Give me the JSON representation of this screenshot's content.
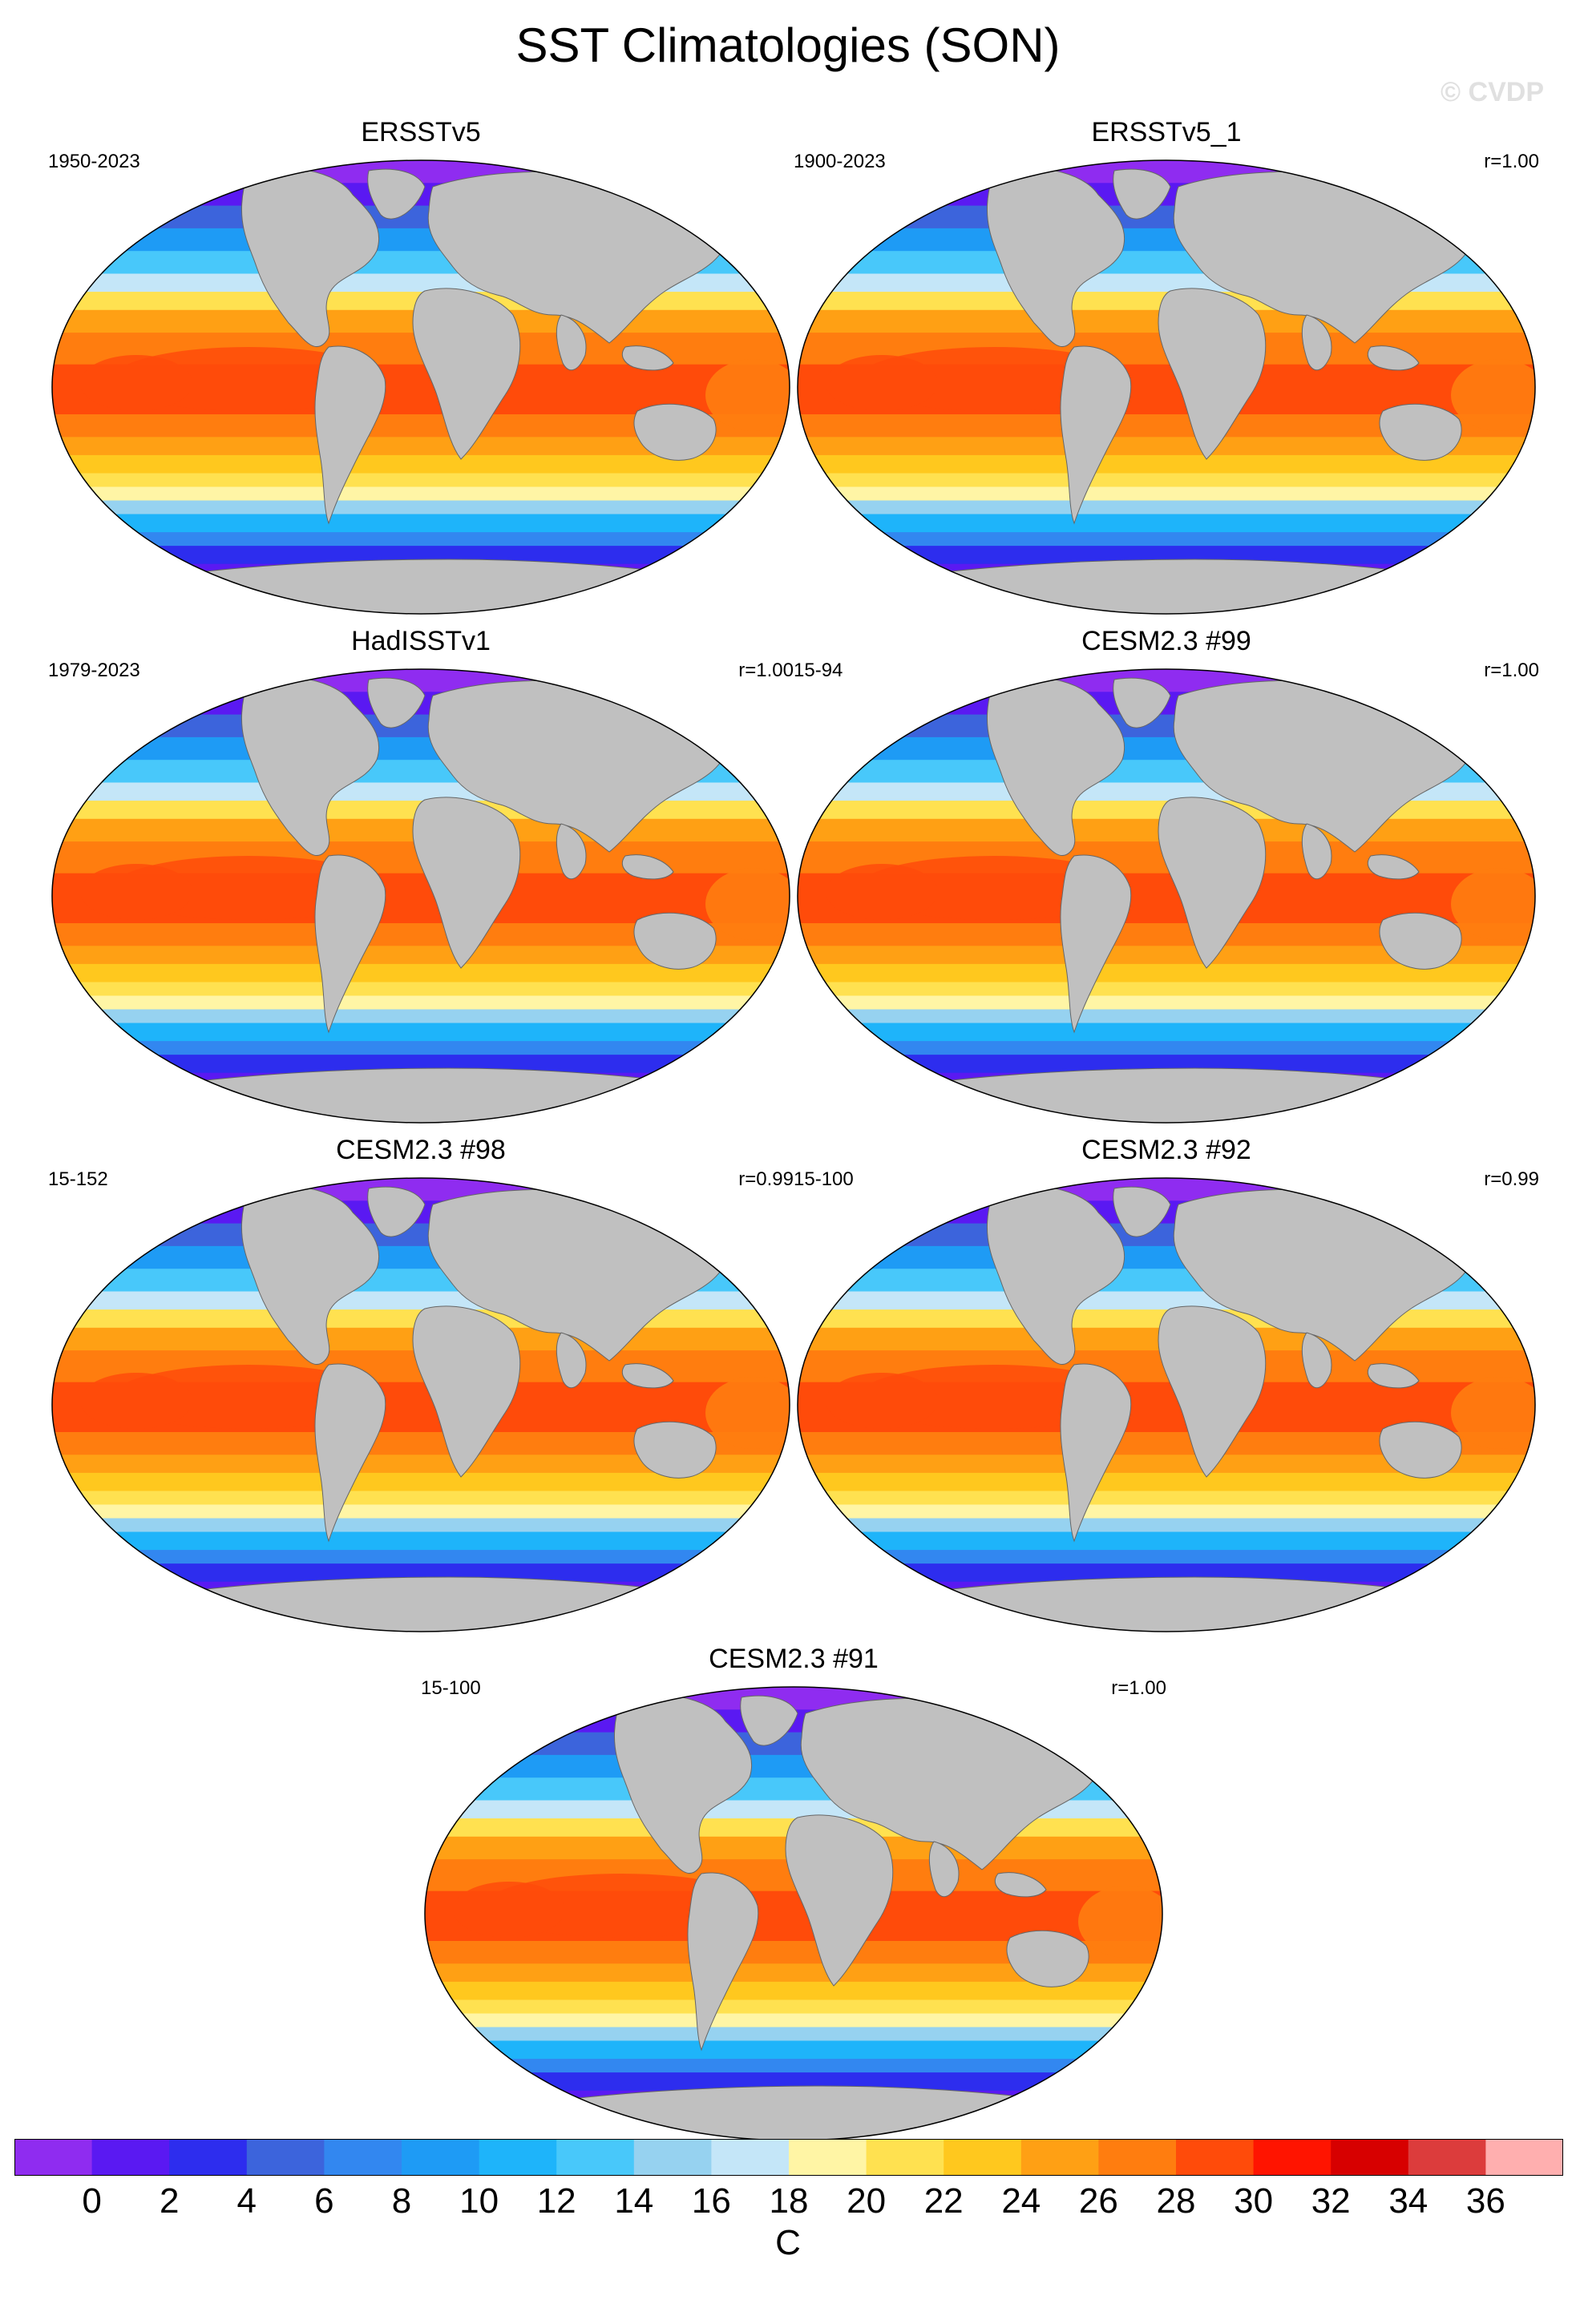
{
  "title": "SST Climatologies (SON)",
  "watermark": "© CVDP",
  "panels": [
    {
      "title": "ERSSTv5",
      "period": "1950-2023",
      "corr": ""
    },
    {
      "title": "ERSSTv5_1",
      "period": "1900-2023",
      "corr": "r=1.00"
    },
    {
      "title": "HadISSTv1",
      "period": "1979-2023",
      "corr": "r=1.00"
    },
    {
      "title": "CESM2.3 #99",
      "period": "15-94",
      "corr": "r=1.00"
    },
    {
      "title": "CESM2.3 #98",
      "period": "15-152",
      "corr": "r=0.99"
    },
    {
      "title": "CESM2.3 #92",
      "period": "15-100",
      "corr": "r=0.99"
    },
    {
      "title": "CESM2.3 #91",
      "period": "15-100",
      "corr": "r=1.00"
    }
  ],
  "colorbar": {
    "colors": [
      "#8f2cf0",
      "#5a19f2",
      "#2d2dee",
      "#3c64dc",
      "#3287f0",
      "#1e9bf5",
      "#1eb4fa",
      "#48c8fa",
      "#96d2f0",
      "#c4e6f8",
      "#fff5a5",
      "#ffe150",
      "#ffc81e",
      "#ffa014",
      "#ff7d0f",
      "#ff4b0a",
      "#ff1400",
      "#d70000",
      "#dc3c3c",
      "#ffafaf"
    ],
    "ticks": [
      "0",
      "2",
      "4",
      "6",
      "8",
      "10",
      "12",
      "14",
      "16",
      "18",
      "20",
      "22",
      "24",
      "26",
      "28",
      "30",
      "32",
      "34",
      "36"
    ],
    "units": "C"
  },
  "colors": {
    "land": "#c0c0c0",
    "sea_ice": "#8f2cf0"
  }
}
